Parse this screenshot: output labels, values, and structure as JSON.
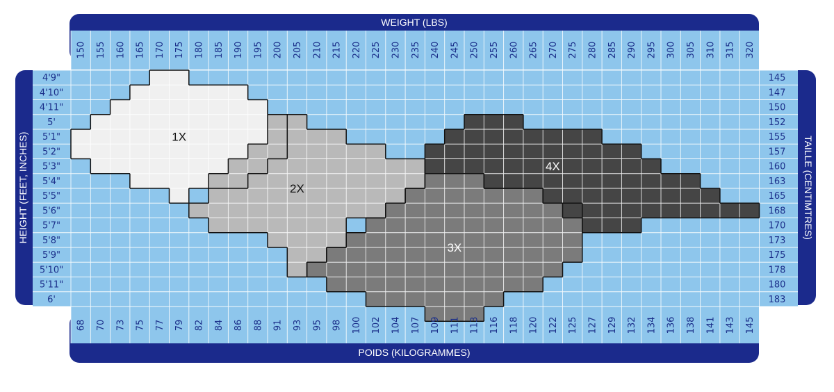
{
  "chart_data": {
    "type": "heatmap",
    "title": "",
    "top_axis_title": "WEIGHT (LBS)",
    "bottom_axis_title": "POIDS (KILOGRAMMES)",
    "left_axis_title": "HEIGHT (FEET, INCHES)",
    "right_axis_title": "TAILLE (CENTIMTRES)",
    "weight_lbs": [
      "150",
      "155",
      "160",
      "165",
      "170",
      "175",
      "180",
      "185",
      "190",
      "195",
      "200",
      "205",
      "210",
      "215",
      "220",
      "225",
      "230",
      "235",
      "240",
      "245",
      "250",
      "255",
      "260",
      "265",
      "270",
      "275",
      "280",
      "285",
      "290",
      "295",
      "300",
      "305",
      "310",
      "315",
      "320"
    ],
    "weight_kg": [
      "68",
      "70",
      "73",
      "75",
      "77",
      "79",
      "82",
      "84",
      "86",
      "88",
      "91",
      "93",
      "95",
      "98",
      "100",
      "102",
      "104",
      "107",
      "109",
      "111",
      "113",
      "116",
      "118",
      "120",
      "122",
      "125",
      "127",
      "129",
      "132",
      "134",
      "136",
      "138",
      "141",
      "143",
      "145"
    ],
    "height_ft_in": [
      "4'9\"",
      "4'10\"",
      "4'11\"",
      "5'",
      "5'1\"",
      "5'2\"",
      "5'3\"",
      "5'4\"",
      "5'5\"",
      "5'6\"",
      "5'7\"",
      "5'8\"",
      "5'9\"",
      "5'10\"",
      "5'11\"",
      "6'"
    ],
    "height_cm": [
      "145",
      "147",
      "150",
      "152",
      "155",
      "157",
      "160",
      "163",
      "165",
      "168",
      "170",
      "173",
      "175",
      "178",
      "180",
      "183"
    ],
    "zones": [
      {
        "label": "1X",
        "color": "#f0f0f0",
        "text_color": "#111111",
        "rows": [
          [
            4,
            5
          ],
          [
            3,
            8
          ],
          [
            2,
            9
          ],
          [
            1,
            10
          ],
          [
            0,
            10
          ],
          [
            0,
            10
          ],
          [
            1,
            9
          ],
          [
            3,
            8
          ],
          [
            5,
            5
          ]
        ]
      },
      {
        "label": "2X",
        "color": "#b9b9b9",
        "text_color": "#111111",
        "rows": [
          [
            10,
            11
          ],
          [
            10,
            13
          ],
          [
            9,
            15
          ],
          [
            8,
            17
          ],
          [
            7,
            17
          ],
          [
            7,
            16
          ],
          [
            6,
            15
          ],
          [
            7,
            13
          ],
          [
            10,
            13
          ],
          [
            11,
            12
          ],
          [
            11,
            11
          ]
        ]
      },
      {
        "label": "3X",
        "color": "#7b7b7b",
        "text_color": "#ffffff",
        "rows": [
          [
            18,
            20
          ],
          [
            17,
            23
          ],
          [
            16,
            25
          ],
          [
            15,
            25
          ],
          [
            14,
            25
          ],
          [
            13,
            25
          ],
          [
            12,
            24
          ],
          [
            13,
            23
          ],
          [
            15,
            21
          ],
          [
            18,
            20
          ]
        ]
      },
      {
        "label": "4X",
        "color": "#454545",
        "text_color": "#ffffff",
        "rows": [
          [
            20,
            22
          ],
          [
            19,
            26
          ],
          [
            18,
            28
          ],
          [
            18,
            29
          ],
          [
            21,
            31
          ],
          [
            24,
            32
          ],
          [
            25,
            34
          ],
          [
            26,
            28
          ]
        ]
      }
    ],
    "zone_start_rows": [
      0,
      3,
      7,
      3
    ],
    "zone_label_pos": [
      [
        5,
        4
      ],
      [
        11,
        7.5
      ],
      [
        19,
        11.5
      ],
      [
        24,
        6
      ]
    ],
    "colors": {
      "chart_bg": "#8ec6ec",
      "frame": "#1b2a8c",
      "grid": "#ffffff",
      "tick_text": "#1b2f8a"
    }
  }
}
